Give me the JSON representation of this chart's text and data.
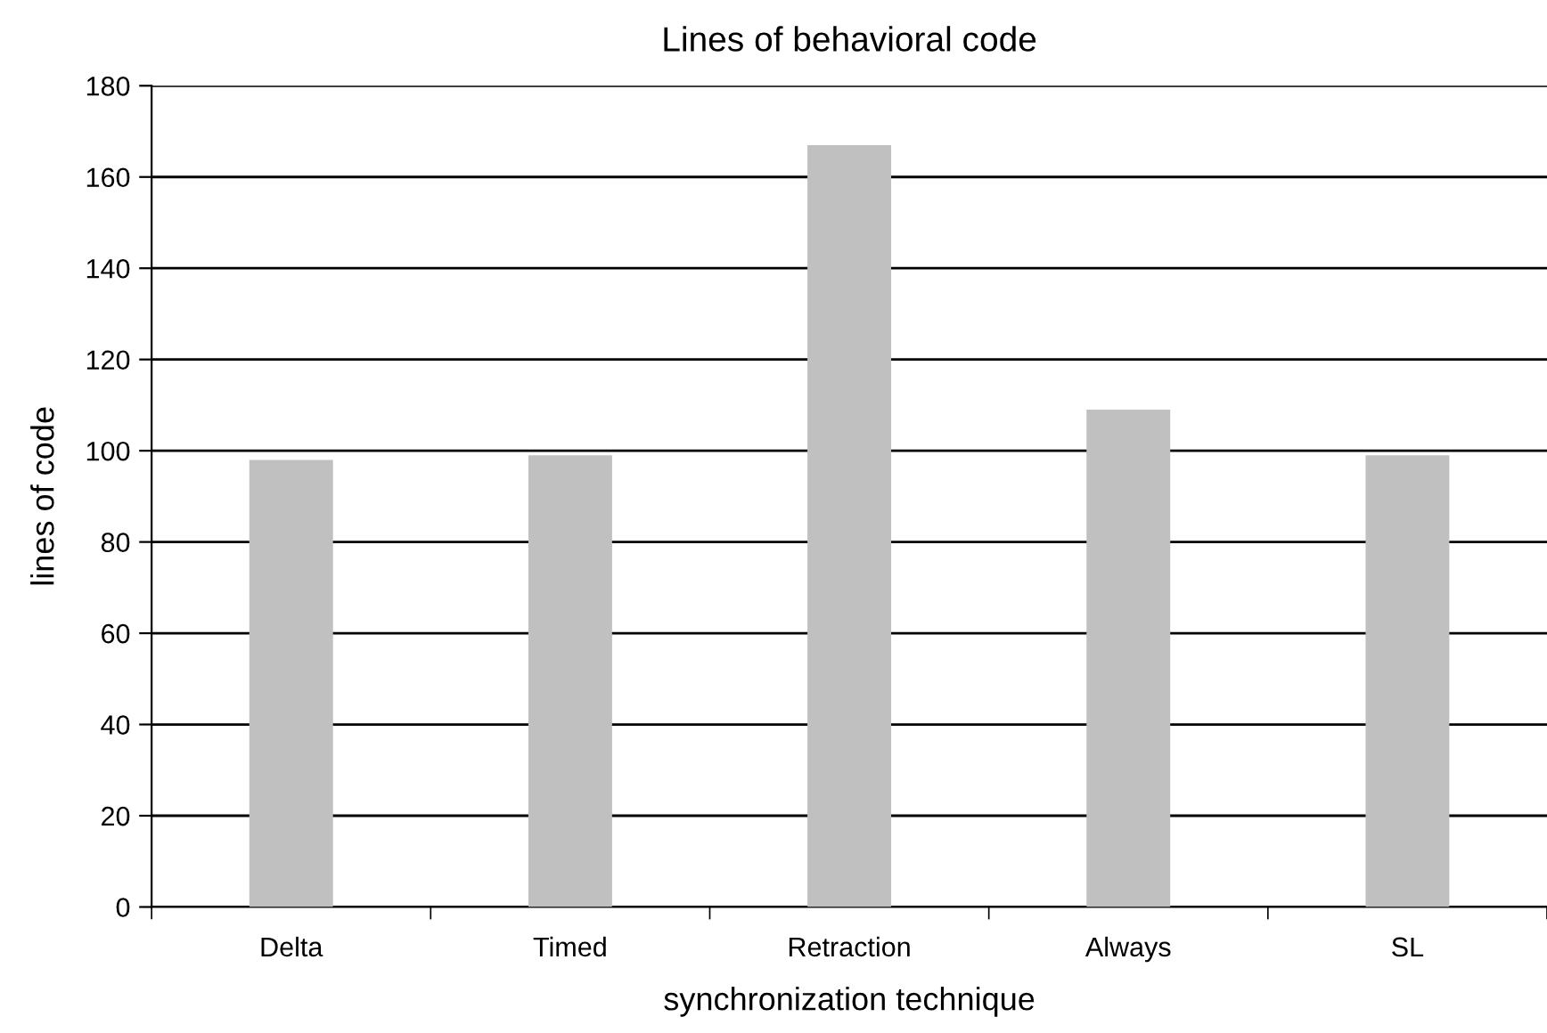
{
  "chart_data": {
    "type": "bar",
    "title": "Lines of behavioral code",
    "xlabel": "synchronization technique",
    "ylabel": "lines of code",
    "categories": [
      "Delta",
      "Timed",
      "Retraction",
      "Always",
      "SL"
    ],
    "values": [
      98,
      99,
      167,
      109,
      99
    ],
    "color": "#c0c0c0",
    "ylim": [
      0,
      180
    ],
    "yticks": [
      0,
      20,
      40,
      60,
      80,
      100,
      120,
      140,
      160,
      180
    ],
    "grid": "y",
    "legend": false
  }
}
